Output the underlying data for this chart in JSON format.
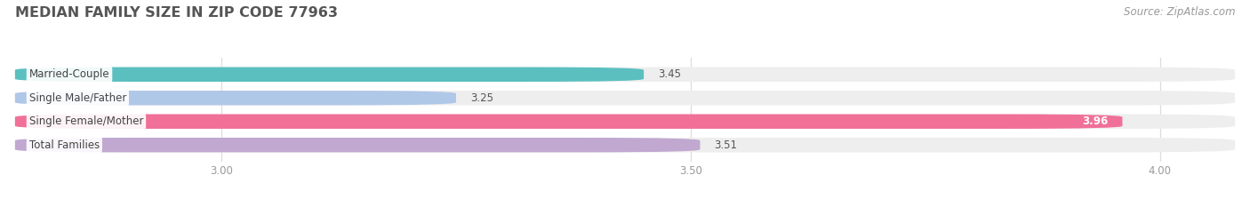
{
  "title": "MEDIAN FAMILY SIZE IN ZIP CODE 77963",
  "source": "Source: ZipAtlas.com",
  "categories": [
    "Married-Couple",
    "Single Male/Father",
    "Single Female/Mother",
    "Total Families"
  ],
  "values": [
    3.45,
    3.25,
    3.96,
    3.51
  ],
  "bar_colors": [
    "#5bbfc0",
    "#b0c8e8",
    "#f07098",
    "#c0a8d0"
  ],
  "bar_bg_color": "#eeeeee",
  "xlim_min": 2.78,
  "xlim_max": 4.08,
  "xticks": [
    3.0,
    3.5,
    4.0
  ],
  "bar_height": 0.62,
  "bar_gap": 1.0,
  "label_fontsize": 8.5,
  "title_fontsize": 11.5,
  "value_fontsize": 8.5,
  "source_fontsize": 8.5,
  "background_color": "#ffffff",
  "label_color": "#444444",
  "title_color": "#555555",
  "source_color": "#999999",
  "tick_label_color": "#999999",
  "value_color_inside": "#ffffff",
  "value_color_outside": "#555555",
  "grid_color": "#dddddd",
  "value_inside_category": "Single Female/Mother"
}
